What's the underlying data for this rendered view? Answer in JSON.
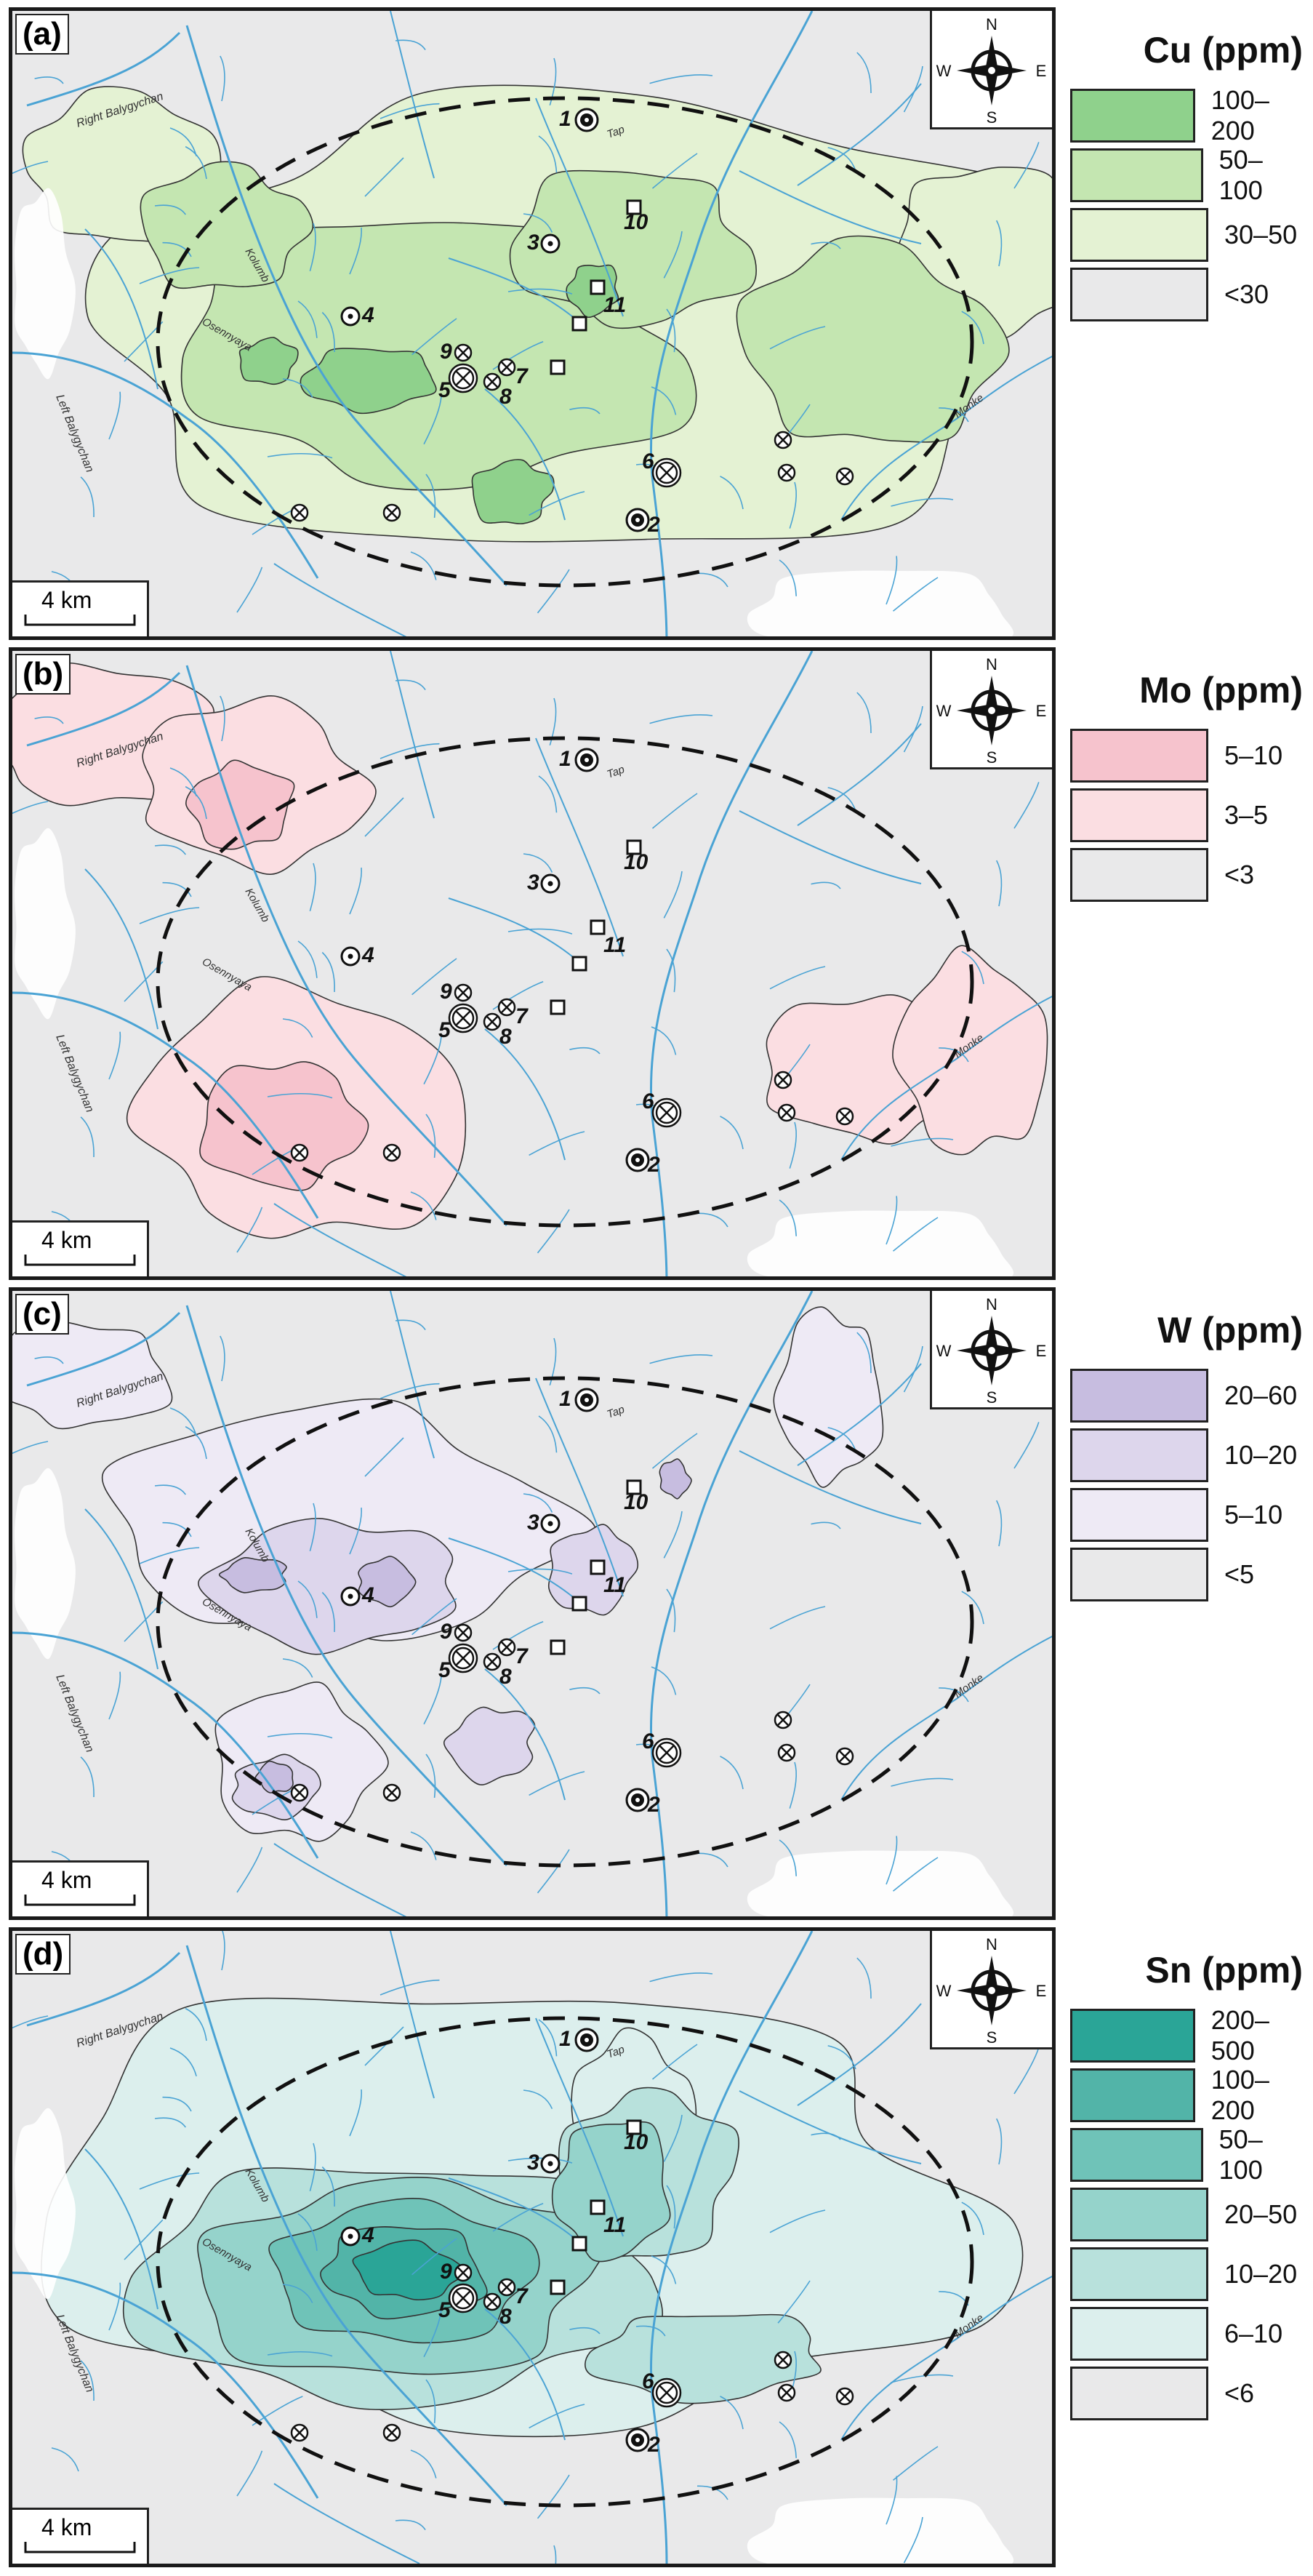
{
  "panels": [
    {
      "label": "(a)",
      "element": "Cu",
      "legend_title": "Cu (ppm)",
      "classes": [
        {
          "label": "100–200",
          "color": "#8fd18c"
        },
        {
          "label": "50–100",
          "color": "#c4e6b1"
        },
        {
          "label": "30–50",
          "color": "#e4f2d3"
        },
        {
          "label": "<30",
          "color": "#e9e9ea"
        }
      ]
    },
    {
      "label": "(b)",
      "element": "Mo",
      "legend_title": "Mo (ppm)",
      "classes": [
        {
          "label": "5–10",
          "color": "#f6c3cd"
        },
        {
          "label": "3–5",
          "color": "#fbdee2"
        },
        {
          "label": "<3",
          "color": "#e9e9ea"
        }
      ]
    },
    {
      "label": "(c)",
      "element": "W",
      "legend_title": "W (ppm)",
      "classes": [
        {
          "label": "20–60",
          "color": "#c7bde0"
        },
        {
          "label": "10–20",
          "color": "#ddd6ec"
        },
        {
          "label": "5–10",
          "color": "#eeeaf5"
        },
        {
          "label": "<5",
          "color": "#e9e9ea"
        }
      ]
    },
    {
      "label": "(d)",
      "element": "Sn",
      "legend_title": "Sn (ppm)",
      "classes": [
        {
          "label": "200–500",
          "color": "#2aa597"
        },
        {
          "label": "100–200",
          "color": "#52b4a8"
        },
        {
          "label": "50–100",
          "color": "#6fc3b8"
        },
        {
          "label": "20–50",
          "color": "#95d3cb"
        },
        {
          "label": "10–20",
          "color": "#b8e1dc"
        },
        {
          "label": "6–10",
          "color": "#dcefed"
        },
        {
          "label": "<6",
          "color": "#e9e9ea"
        }
      ]
    }
  ],
  "compass": {
    "n": "N",
    "s": "S",
    "e": "E",
    "w": "W"
  },
  "scale_bar": "4 km",
  "rivers": {
    "right": "Right Balygychan",
    "left": "Left Balygychan",
    "kolumb": "Kolumb",
    "osennyaya": "Osennyaya",
    "tap": "Tap",
    "monke": "Monke"
  },
  "sites": [
    "1",
    "2",
    "3",
    "4",
    "5",
    "6",
    "7",
    "8",
    "9",
    "10",
    "11"
  ],
  "colors": {
    "river": "#4aa3d4",
    "background": "#e9e9ea",
    "frame": "#1a1a1a"
  }
}
